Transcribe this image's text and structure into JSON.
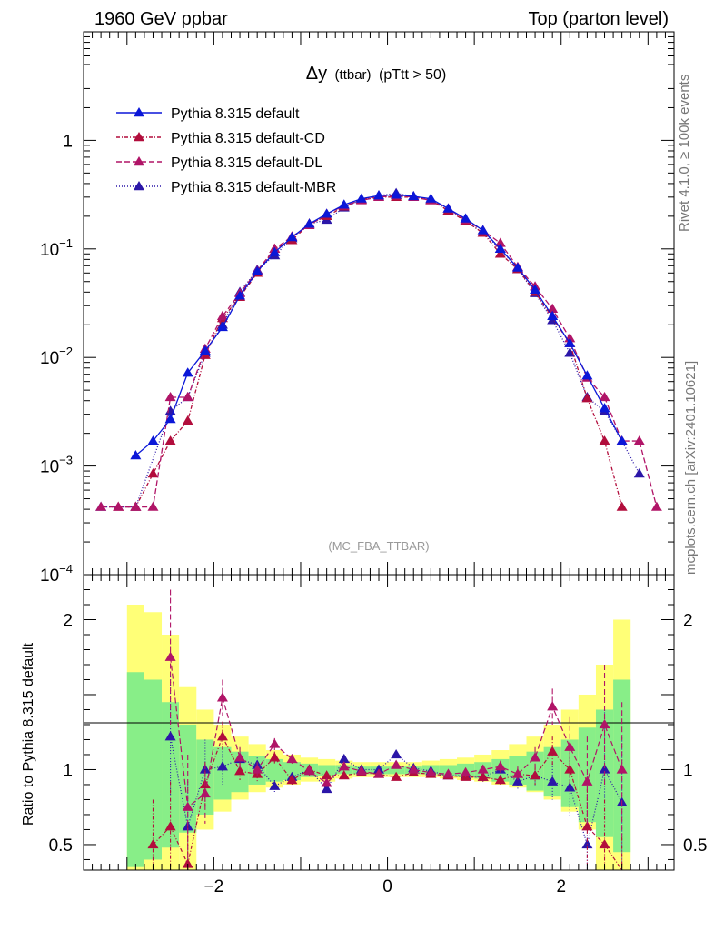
{
  "header": {
    "left": "1960 GeV ppbar",
    "right": "Top (parton level)"
  },
  "side_labels": {
    "rivet": "Rivet 4.1.0, ≥ 100k events",
    "mcplots": "mcplots.cern.ch [arXiv:2401.10621]"
  },
  "chart_data": {
    "type": "line",
    "title_symbol": "Δy",
    "title_small": "(ttbar)",
    "title_cut": "(pTtt > 50)",
    "analysis": "(MC_FBA_TTBAR)",
    "yscale": "log",
    "ylim": [
      0.0001,
      10
    ],
    "xlim": [
      -3.5,
      3.3
    ],
    "ratio_ylabel": "Ratio to Pythia 8.315 default",
    "ratio_ylim": [
      0.33,
      2.3
    ],
    "x_ticks": [
      -2,
      0,
      2
    ],
    "x_tick_labels": [
      "−2",
      "0",
      "2"
    ],
    "y_ticks": [
      {
        "value": 1,
        "mant": "1",
        "exp": ""
      },
      {
        "value": 0.1,
        "mant": "10",
        "exp": "−1"
      },
      {
        "value": 0.01,
        "mant": "10",
        "exp": "−2"
      },
      {
        "value": 0.001,
        "mant": "10",
        "exp": "−3"
      },
      {
        "value": 0.0001,
        "mant": "10",
        "exp": "−4"
      }
    ],
    "ratio_ticks": [
      {
        "value": 2,
        "label": "2"
      },
      {
        "value": 1,
        "label": "1"
      },
      {
        "value": 0.5,
        "label": "0.5"
      }
    ],
    "band_edges": [
      -3.0,
      -2.8,
      -2.6,
      -2.4,
      -2.2,
      -2.0,
      -1.8,
      -1.6,
      -1.4,
      -1.2,
      -1.0,
      -0.8,
      -0.6,
      -0.4,
      -0.2,
      0.0,
      0.2,
      0.4,
      0.6,
      0.8,
      1.0,
      1.2,
      1.4,
      1.6,
      1.8,
      2.0,
      2.2,
      2.4,
      2.6,
      2.8
    ],
    "band_yellow_lo": [
      0.2,
      0.2,
      0.2,
      0.2,
      0.6,
      0.72,
      0.8,
      0.85,
      0.88,
      0.9,
      0.92,
      0.92,
      0.94,
      0.95,
      0.95,
      0.95,
      0.95,
      0.95,
      0.94,
      0.93,
      0.92,
      0.9,
      0.88,
      0.85,
      0.8,
      0.72,
      0.6,
      0.2,
      0.2
    ],
    "band_yellow_hi": [
      2.1,
      2.05,
      1.9,
      1.55,
      1.4,
      1.3,
      1.22,
      1.17,
      1.13,
      1.1,
      1.08,
      1.07,
      1.06,
      1.05,
      1.05,
      1.05,
      1.05,
      1.06,
      1.07,
      1.08,
      1.1,
      1.13,
      1.17,
      1.22,
      1.3,
      1.4,
      1.5,
      1.7,
      2.0
    ],
    "band_green_lo": [
      0.35,
      0.4,
      0.48,
      0.58,
      0.7,
      0.8,
      0.85,
      0.9,
      0.92,
      0.93,
      0.95,
      0.96,
      0.97,
      0.97,
      0.97,
      0.97,
      0.97,
      0.97,
      0.96,
      0.95,
      0.94,
      0.92,
      0.9,
      0.86,
      0.82,
      0.75,
      0.65,
      0.55,
      0.45
    ],
    "band_green_hi": [
      1.65,
      1.6,
      1.45,
      1.3,
      1.2,
      1.15,
      1.12,
      1.09,
      1.07,
      1.05,
      1.04,
      1.03,
      1.03,
      1.02,
      1.02,
      1.02,
      1.02,
      1.03,
      1.03,
      1.04,
      1.05,
      1.07,
      1.09,
      1.12,
      1.15,
      1.2,
      1.28,
      1.4,
      1.6
    ],
    "series": [
      {
        "name": "Pythia 8.315 default",
        "color": "#0b17d8",
        "dash": "",
        "x": [
          -2.9,
          -2.7,
          -2.5,
          -2.3,
          -2.1,
          -1.9,
          -1.7,
          -1.5,
          -1.3,
          -1.1,
          -0.9,
          -0.7,
          -0.5,
          -0.3,
          -0.1,
          0.1,
          0.3,
          0.5,
          0.7,
          0.9,
          1.1,
          1.3,
          1.5,
          1.7,
          1.9,
          2.1,
          2.3,
          2.5,
          2.7
        ],
        "y": [
          0.00125,
          0.0017,
          0.0027,
          0.0072,
          0.0115,
          0.019,
          0.037,
          0.062,
          0.093,
          0.128,
          0.17,
          0.21,
          0.255,
          0.29,
          0.31,
          0.315,
          0.305,
          0.29,
          0.235,
          0.19,
          0.148,
          0.1,
          0.067,
          0.042,
          0.024,
          0.0135,
          0.0068,
          0.0034,
          0.0017
        ],
        "ratio_x": [],
        "ratio_y": []
      },
      {
        "name": "Pythia 8.315 default-CD",
        "color": "#b20d3c",
        "dash": "4,2,1,2",
        "x": [
          -3.1,
          -2.9,
          -2.7,
          -2.5,
          -2.3,
          -2.1,
          -1.9,
          -1.7,
          -1.5,
          -1.3,
          -1.1,
          -0.9,
          -0.7,
          -0.5,
          -0.3,
          -0.1,
          0.1,
          0.3,
          0.5,
          0.7,
          0.9,
          1.1,
          1.3,
          1.5,
          1.7,
          2.1,
          2.3,
          2.5,
          2.7
        ],
        "y": [
          0.00042,
          0.00042,
          0.00085,
          0.0017,
          0.0026,
          0.0105,
          0.023,
          0.036,
          0.06,
          0.1,
          0.12,
          0.17,
          0.2,
          0.245,
          0.285,
          0.3,
          0.3,
          0.3,
          0.28,
          0.225,
          0.18,
          0.14,
          0.09,
          0.065,
          0.04,
          0.0135,
          0.0042,
          0.0017,
          0.00042
        ],
        "ratio_x": [
          -2.7,
          -2.5,
          -2.3,
          -2.1,
          -1.9,
          -1.7,
          -1.5,
          -1.3,
          -1.1,
          -0.9,
          -0.7,
          -0.5,
          -0.3,
          -0.1,
          0.1,
          0.3,
          0.5,
          0.7,
          0.9,
          1.1,
          1.3,
          1.5,
          1.7,
          1.9,
          2.1,
          2.3,
          2.5,
          2.7
        ],
        "ratio_y": [
          0.5,
          0.62,
          0.37,
          0.9,
          1.22,
          0.99,
          0.97,
          1.08,
          0.93,
          1.0,
          0.96,
          0.96,
          0.98,
          0.97,
          0.95,
          0.98,
          0.97,
          0.96,
          0.95,
          0.95,
          0.93,
          0.97,
          0.96,
          1.12,
          1.0,
          0.62,
          0.5,
          0.25
        ],
        "ratio_err": [
          0.3,
          0.3,
          0.25,
          0.15,
          0.1,
          0.06,
          0.05,
          0.04,
          0.03,
          0.02,
          0.02,
          0.02,
          0.02,
          0.02,
          0.02,
          0.02,
          0.02,
          0.02,
          0.02,
          0.03,
          0.03,
          0.04,
          0.06,
          0.1,
          0.15,
          0.25,
          0.3,
          0.3
        ]
      },
      {
        "name": "Pythia 8.315 default-DL",
        "color": "#b01467",
        "dash": "6,3",
        "x": [
          -3.3,
          -3.1,
          -2.9,
          -2.7,
          -2.5,
          -2.3,
          -2.1,
          -1.9,
          -1.7,
          -1.5,
          -1.3,
          -1.1,
          -0.9,
          -0.7,
          -0.5,
          -0.3,
          -0.1,
          0.1,
          0.3,
          0.5,
          0.7,
          0.9,
          1.1,
          1.3,
          1.5,
          1.7,
          1.9,
          2.1,
          2.3,
          2.5,
          2.7,
          2.9,
          3.1
        ],
        "y": [
          0.00042,
          0.00042,
          0.00042,
          0.00042,
          0.0043,
          0.0043,
          0.012,
          0.024,
          0.039,
          0.063,
          0.1,
          0.13,
          0.165,
          0.21,
          0.25,
          0.28,
          0.3,
          0.31,
          0.3,
          0.28,
          0.235,
          0.185,
          0.148,
          0.113,
          0.068,
          0.045,
          0.028,
          0.015,
          0.0065,
          0.0043,
          0.0017,
          0.0017,
          0.00042
        ],
        "ratio_x": [
          -2.5,
          -2.3,
          -2.1,
          -1.9,
          -1.7,
          -1.5,
          -1.3,
          -1.1,
          -0.9,
          -0.7,
          -0.5,
          -0.3,
          -0.1,
          0.1,
          0.3,
          0.5,
          0.7,
          0.9,
          1.1,
          1.3,
          1.5,
          1.7,
          1.9,
          2.1,
          2.3,
          2.5,
          2.7
        ],
        "ratio_y": [
          1.75,
          0.75,
          0.84,
          1.48,
          1.08,
          1.0,
          1.17,
          1.07,
          0.99,
          0.91,
          1.02,
          0.99,
          0.97,
          1.03,
          1.0,
          0.98,
          0.97,
          0.98,
          1.0,
          1.02,
          0.97,
          1.08,
          1.42,
          1.15,
          0.92,
          1.3,
          1.0
        ],
        "ratio_err": [
          0.45,
          0.35,
          0.2,
          0.12,
          0.07,
          0.05,
          0.04,
          0.03,
          0.03,
          0.02,
          0.02,
          0.02,
          0.02,
          0.02,
          0.02,
          0.02,
          0.02,
          0.03,
          0.03,
          0.04,
          0.05,
          0.07,
          0.12,
          0.2,
          0.3,
          0.4,
          0.45
        ]
      },
      {
        "name": "Pythia 8.315 default-MBR",
        "color": "#2b16a8",
        "dash": "1,2",
        "x": [
          -3.3,
          -2.9,
          -2.5,
          -2.3,
          -2.1,
          -1.9,
          -1.7,
          -1.5,
          -1.3,
          -1.1,
          -0.9,
          -0.7,
          -0.5,
          -0.3,
          -0.1,
          0.1,
          0.3,
          0.5,
          0.7,
          0.9,
          1.1,
          1.3,
          1.5,
          1.7,
          1.9,
          2.1,
          2.3,
          2.5,
          2.7,
          2.9
        ],
        "y": [
          0.00042,
          0.00042,
          0.0032,
          0.0043,
          0.011,
          0.02,
          0.04,
          0.064,
          0.087,
          0.125,
          0.17,
          0.185,
          0.24,
          0.285,
          0.31,
          0.325,
          0.305,
          0.285,
          0.225,
          0.182,
          0.14,
          0.1,
          0.065,
          0.039,
          0.022,
          0.011,
          0.0043,
          0.0032,
          0.0017,
          0.00085
        ],
        "ratio_x": [
          -2.5,
          -2.3,
          -2.1,
          -1.9,
          -1.7,
          -1.5,
          -1.3,
          -1.1,
          -0.9,
          -0.7,
          -0.5,
          -0.3,
          -0.1,
          0.1,
          0.3,
          0.5,
          0.7,
          0.9,
          1.1,
          1.3,
          1.5,
          1.7,
          1.9,
          2.1,
          2.3,
          2.5,
          2.7
        ],
        "ratio_y": [
          1.22,
          0.62,
          1.0,
          1.02,
          1.07,
          1.03,
          0.89,
          0.95,
          1.0,
          0.87,
          1.07,
          1.0,
          1.0,
          1.1,
          1.01,
          0.99,
          0.96,
          0.96,
          0.95,
          1.0,
          0.92,
          0.96,
          0.92,
          0.88,
          0.5,
          1.0,
          0.78
        ],
        "ratio_err": [
          0.4,
          0.3,
          0.2,
          0.12,
          0.07,
          0.05,
          0.04,
          0.03,
          0.03,
          0.02,
          0.02,
          0.02,
          0.02,
          0.02,
          0.02,
          0.02,
          0.02,
          0.03,
          0.03,
          0.04,
          0.05,
          0.07,
          0.12,
          0.2,
          0.3,
          0.4,
          0.45
        ]
      }
    ]
  }
}
